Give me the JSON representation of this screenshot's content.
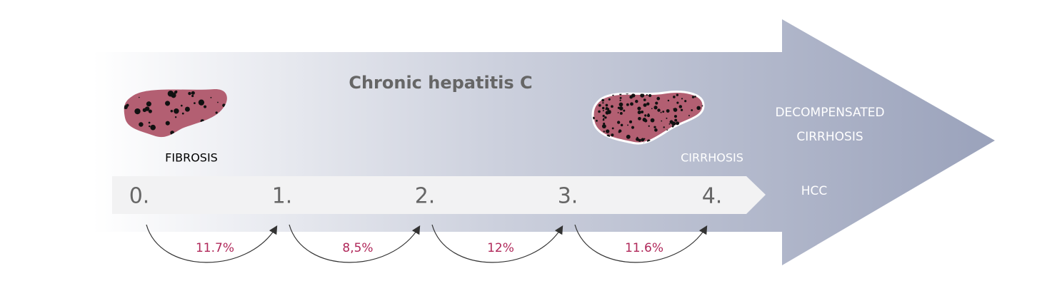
{
  "title": "Chronic hepatitis C",
  "stages": [
    {
      "number": "0.",
      "label": "FIBROSIS"
    },
    {
      "number": "1."
    },
    {
      "number": "2."
    },
    {
      "number": "3."
    },
    {
      "number": "4.",
      "label": "CIRRHOSIS"
    }
  ],
  "transitions": [
    "11.7%",
    "8,5%",
    "12%",
    "11.6%"
  ],
  "outcomes": {
    "decompensated": [
      "DECOMPENSATED",
      "CIRRHOSIS"
    ],
    "hcc": "HCC"
  }
}
